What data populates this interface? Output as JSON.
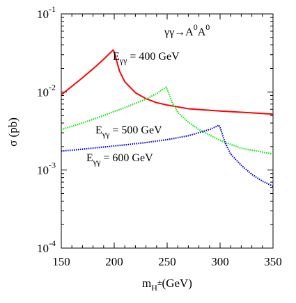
{
  "chart_data": {
    "type": "line",
    "title": "",
    "process": {
      "base": "γγ→A",
      "sup1": "0",
      "mid": "A",
      "sup2": "0"
    },
    "xlabel": {
      "base": "m",
      "sub": "H",
      "subsup": "±",
      "rest": "(GeV)"
    },
    "ylabel": "σ (pb)",
    "xlim": [
      150,
      350
    ],
    "ylim": [
      0.0001,
      0.1
    ],
    "yscale": "log",
    "grid": false,
    "x_ticks": [
      150,
      200,
      250,
      300,
      350
    ],
    "x_tick_labels": [
      "150",
      "200",
      "250",
      "300",
      "350"
    ],
    "y_ticks": [
      0.0001,
      0.001,
      0.01,
      0.1
    ],
    "y_tick_labels": [
      {
        "base": "10",
        "exp": "-4"
      },
      {
        "base": "10",
        "exp": "-3"
      },
      {
        "base": "10",
        "exp": "-2"
      },
      {
        "base": "10",
        "exp": "-1"
      }
    ],
    "series": [
      {
        "name": "400 GeV",
        "label": {
          "prefix": "E",
          "sub": "γγ",
          "rest": " = 400 GeV"
        },
        "color": "#ff0000",
        "style": "solid",
        "x": [
          150,
          160,
          170,
          180,
          190,
          199,
          200,
          205,
          210,
          220,
          230,
          240,
          250,
          270,
          300,
          330,
          350
        ],
        "y": [
          0.0092,
          0.0118,
          0.0152,
          0.0198,
          0.0262,
          0.0345,
          0.0325,
          0.0185,
          0.0135,
          0.0098,
          0.0082,
          0.0073,
          0.0068,
          0.0061,
          0.0057,
          0.0054,
          0.0052
        ]
      },
      {
        "name": "500 GeV",
        "label": {
          "prefix": "E",
          "sub": "γγ",
          "rest": " = 500 GeV"
        },
        "color": "#00ee00",
        "style": "dotted",
        "x": [
          150,
          170,
          190,
          210,
          230,
          240,
          245,
          249,
          250,
          255,
          260,
          270,
          280,
          300,
          320,
          340,
          350
        ],
        "y": [
          0.0033,
          0.004,
          0.005,
          0.0063,
          0.0081,
          0.0095,
          0.0106,
          0.0115,
          0.0108,
          0.0072,
          0.0055,
          0.0041,
          0.0033,
          0.0024,
          0.0019,
          0.0017,
          0.0016
        ]
      },
      {
        "name": "600 GeV",
        "label": {
          "prefix": "E",
          "sub": "γγ",
          "rest": " = 600 GeV"
        },
        "color": "#0000cc",
        "style": "dotted",
        "x": [
          150,
          170,
          190,
          210,
          230,
          250,
          270,
          290,
          299,
          300,
          305,
          310,
          320,
          330,
          340,
          350
        ],
        "y": [
          0.00175,
          0.00185,
          0.00197,
          0.0021,
          0.00225,
          0.00245,
          0.00275,
          0.0033,
          0.00375,
          0.0035,
          0.0022,
          0.0016,
          0.00115,
          0.00088,
          0.00072,
          0.00062
        ]
      }
    ]
  }
}
